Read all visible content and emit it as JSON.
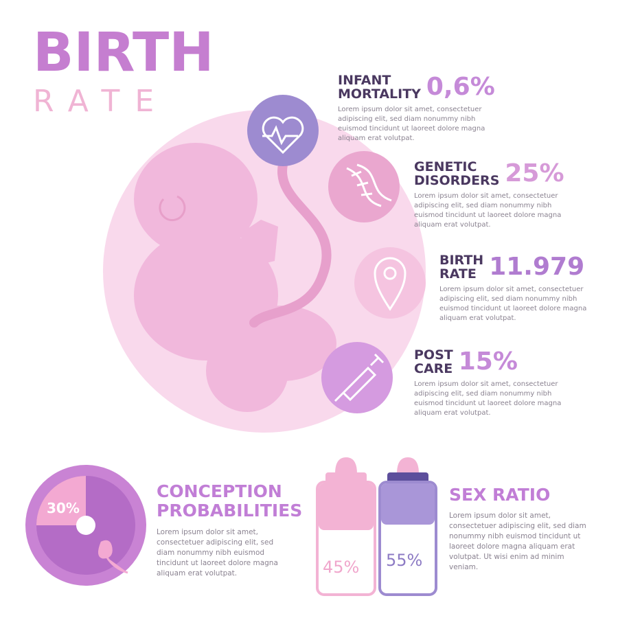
{
  "header": {
    "title": "BIRTH",
    "subtitle": "RATE"
  },
  "stats": [
    {
      "label": [
        "INFANT",
        "MORTALITY"
      ],
      "value": "0,6%",
      "text": "Lorem ipsum dolor sit amet, consectetuer adipiscing elit, sed diam nonummy nibh euismod tincidunt ut laoreet dolore magna aliquam erat volutpat."
    },
    {
      "label": [
        "GENETIC",
        "DISORDERS"
      ],
      "value": "25%",
      "text": "Lorem ipsum dolor sit amet, consectetuer adipiscing elit, sed diam nonummy nibh euismod tincidunt ut laoreet dolore magna aliquam erat volutpat."
    },
    {
      "label": [
        "BIRTH",
        "RATE"
      ],
      "value": "11.979",
      "text": "Lorem ipsum dolor sit amet, consectetuer adipiscing elit, sed diam nonummy nibh euismod tincidunt ut laoreet dolore magna aliquam erat volutpat."
    },
    {
      "label": [
        "POST",
        "CARE"
      ],
      "value": "15%",
      "text": "Lorem ipsum dolor sit amet, consectetuer adipiscing elit, sed diam nonummy nibh euismod tincidunt ut laoreet dolore magna aliquam erat volutpat."
    }
  ],
  "conception": {
    "title": [
      "CONCEPTION",
      "PROBABILITIES"
    ],
    "value": "30%",
    "text": "Lorem ipsum dolor sit amet, consectetuer adipiscing elit, sed diam nonummy nibh euismod tincidunt ut laoreet dolore magna aliquam erat volutpat."
  },
  "sex_ratio": {
    "title": "SEX RATIO",
    "female": "45%",
    "male": "55%",
    "text": "Lorem ipsum dolor sit amet, consectetuer adipiscing elit, sed diam nonummy nibh euismod tincidunt ut laoreet dolore magna aliquam erat volutpat. Ut wisi enim ad minim veniam."
  }
}
